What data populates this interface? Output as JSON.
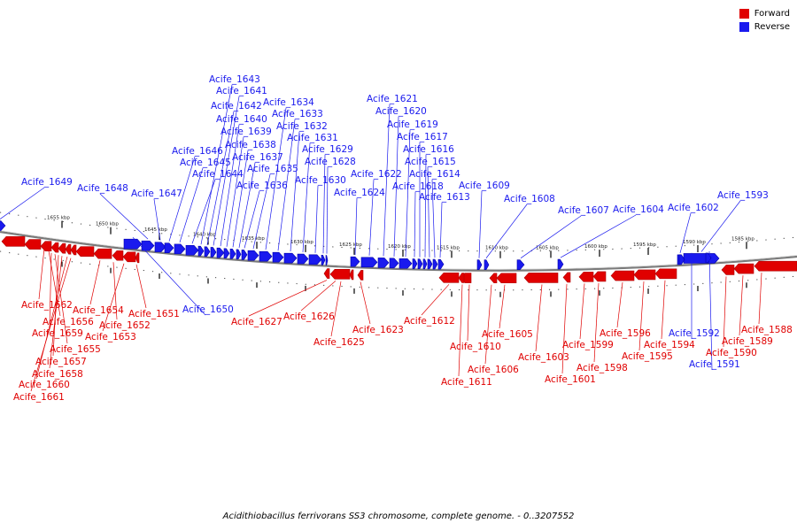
{
  "colors": {
    "forward": "#e00000",
    "reverse": "#1a1aee",
    "backbone": "#7a7a7a"
  },
  "legend": {
    "forward": "Forward",
    "reverse": "Reverse"
  },
  "caption": "Acidithiobacillus ferrivorans SS3 chromosome, complete genome. - 0..3207552",
  "scale_ticks": [
    "1655 kbp",
    "1650 kbp",
    "1645 kbp",
    "1640 kbp",
    "1635 kbp",
    "1630 kbp",
    "1625 kbp",
    "1620 kbp",
    "1615 kbp",
    "1610 kbp",
    "1605 kbp",
    "1600 kbp",
    "1595 kbp",
    "1590 kbp",
    "1585 kbp"
  ],
  "genes": [
    {
      "name": "Acife_1649",
      "strand": "reverse"
    },
    {
      "name": "Acife_1648",
      "strand": "reverse"
    },
    {
      "name": "Acife_1647",
      "strand": "reverse"
    },
    {
      "name": "Acife_1646",
      "strand": "reverse"
    },
    {
      "name": "Acife_1645",
      "strand": "reverse"
    },
    {
      "name": "Acife_1644",
      "strand": "reverse"
    },
    {
      "name": "Acife_1643",
      "strand": "reverse"
    },
    {
      "name": "Acife_1642",
      "strand": "reverse"
    },
    {
      "name": "Acife_1641",
      "strand": "reverse"
    },
    {
      "name": "Acife_1640",
      "strand": "reverse"
    },
    {
      "name": "Acife_1639",
      "strand": "reverse"
    },
    {
      "name": "Acife_1638",
      "strand": "reverse"
    },
    {
      "name": "Acife_1637",
      "strand": "reverse"
    },
    {
      "name": "Acife_1636",
      "strand": "reverse"
    },
    {
      "name": "Acife_1635",
      "strand": "reverse"
    },
    {
      "name": "Acife_1634",
      "strand": "reverse"
    },
    {
      "name": "Acife_1633",
      "strand": "reverse"
    },
    {
      "name": "Acife_1632",
      "strand": "reverse"
    },
    {
      "name": "Acife_1631",
      "strand": "reverse"
    },
    {
      "name": "Acife_1630",
      "strand": "reverse"
    },
    {
      "name": "Acife_1629",
      "strand": "reverse"
    },
    {
      "name": "Acife_1628",
      "strand": "reverse"
    },
    {
      "name": "Acife_1624",
      "strand": "reverse"
    },
    {
      "name": "Acife_1622",
      "strand": "reverse"
    },
    {
      "name": "Acife_1621",
      "strand": "reverse"
    },
    {
      "name": "Acife_1620",
      "strand": "reverse"
    },
    {
      "name": "Acife_1619",
      "strand": "reverse"
    },
    {
      "name": "Acife_1618",
      "strand": "reverse"
    },
    {
      "name": "Acife_1617",
      "strand": "reverse"
    },
    {
      "name": "Acife_1616",
      "strand": "reverse"
    },
    {
      "name": "Acife_1615",
      "strand": "reverse"
    },
    {
      "name": "Acife_1614",
      "strand": "reverse"
    },
    {
      "name": "Acife_1613",
      "strand": "reverse"
    },
    {
      "name": "Acife_1609",
      "strand": "reverse"
    },
    {
      "name": "Acife_1608",
      "strand": "reverse"
    },
    {
      "name": "Acife_1607",
      "strand": "reverse"
    },
    {
      "name": "Acife_1604",
      "strand": "reverse"
    },
    {
      "name": "Acife_1602",
      "strand": "reverse"
    },
    {
      "name": "Acife_1593",
      "strand": "reverse"
    },
    {
      "name": "Acife_1650",
      "strand": "reverse"
    },
    {
      "name": "Acife_1592",
      "strand": "reverse"
    },
    {
      "name": "Acife_1591",
      "strand": "reverse"
    },
    {
      "name": "Acife_1662",
      "strand": "forward"
    },
    {
      "name": "Acife_1656",
      "strand": "forward"
    },
    {
      "name": "Acife_1659",
      "strand": "forward"
    },
    {
      "name": "Acife_1655",
      "strand": "forward"
    },
    {
      "name": "Acife_1657",
      "strand": "forward"
    },
    {
      "name": "Acife_1658",
      "strand": "forward"
    },
    {
      "name": "Acife_1660",
      "strand": "forward"
    },
    {
      "name": "Acife_1661",
      "strand": "forward"
    },
    {
      "name": "Acife_1654",
      "strand": "forward"
    },
    {
      "name": "Acife_1652",
      "strand": "forward"
    },
    {
      "name": "Acife_1653",
      "strand": "forward"
    },
    {
      "name": "Acife_1651",
      "strand": "forward"
    },
    {
      "name": "Acife_1627",
      "strand": "forward"
    },
    {
      "name": "Acife_1626",
      "strand": "forward"
    },
    {
      "name": "Acife_1625",
      "strand": "forward"
    },
    {
      "name": "Acife_1623",
      "strand": "forward"
    },
    {
      "name": "Acife_1612",
      "strand": "forward"
    },
    {
      "name": "Acife_1610",
      "strand": "forward"
    },
    {
      "name": "Acife_1611",
      "strand": "forward"
    },
    {
      "name": "Acife_1606",
      "strand": "forward"
    },
    {
      "name": "Acife_1605",
      "strand": "forward"
    },
    {
      "name": "Acife_1603",
      "strand": "forward"
    },
    {
      "name": "Acife_1601",
      "strand": "forward"
    },
    {
      "name": "Acife_1599",
      "strand": "forward"
    },
    {
      "name": "Acife_1598",
      "strand": "forward"
    },
    {
      "name": "Acife_1596",
      "strand": "forward"
    },
    {
      "name": "Acife_1595",
      "strand": "forward"
    },
    {
      "name": "Acife_1594",
      "strand": "forward"
    },
    {
      "name": "Acife_1590",
      "strand": "forward"
    },
    {
      "name": "Acife_1589",
      "strand": "forward"
    },
    {
      "name": "Acife_1588",
      "strand": "forward"
    }
  ]
}
